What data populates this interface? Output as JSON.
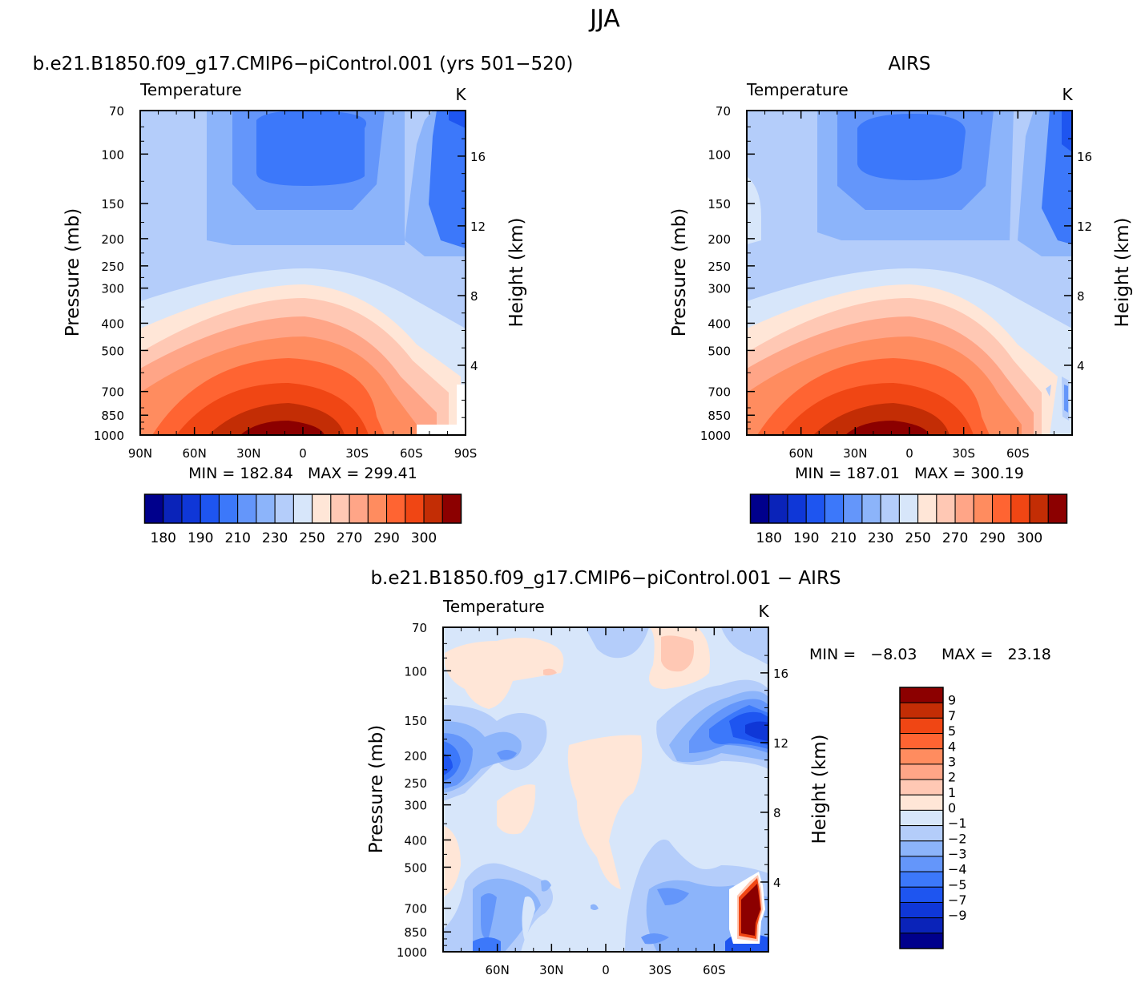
{
  "figure": {
    "title": "JJA"
  },
  "colors": {
    "temperature_palette": [
      "#00008c",
      "#0a23b9",
      "#0f37d7",
      "#1e55f0",
      "#3c78fa",
      "#6496fa",
      "#8cb4fa",
      "#b4cdfa",
      "#d7e6fa",
      "#ffe6d7",
      "#ffc8b4",
      "#ffa587",
      "#ff8c5f",
      "#ff6432",
      "#f04614",
      "#c32d05",
      "#8c0000"
    ],
    "difference_palette": [
      "#00008c",
      "#0a23b9",
      "#0f37d7",
      "#1e55f0",
      "#3c78fa",
      "#6496fa",
      "#8cb4fa",
      "#b4cdfa",
      "#d7e6fa",
      "#ffe6d7",
      "#ffc8b4",
      "#ffa587",
      "#ff8c5f",
      "#ff6432",
      "#f04614",
      "#c32d05",
      "#8c0000"
    ]
  },
  "chart_data": [
    {
      "type": "heatmap",
      "panel_title": "b.e21.B1850.f09_g17.CMIP6−piControl.001 (yrs 501−520)",
      "left_label": "Temperature",
      "units": "K",
      "ylabel": "Pressure (mb)",
      "ylabel_right": "Height (km)",
      "x_ticks": [
        "90N",
        "60N",
        "30N",
        "0",
        "30S",
        "60S",
        "90S"
      ],
      "x_tick_values": [
        90,
        60,
        30,
        0,
        -30,
        -60,
        -90
      ],
      "xlim": [
        90,
        -90
      ],
      "y_ticks": [
        "70",
        "100",
        "150",
        "200",
        "250",
        "300",
        "400",
        "500",
        "700",
        "850",
        "1000"
      ],
      "y_tick_values": [
        70,
        100,
        150,
        200,
        250,
        300,
        400,
        500,
        700,
        850,
        1000
      ],
      "ylim": [
        1000,
        70
      ],
      "y_scale": "log",
      "height_ticks": [
        "16",
        "12",
        "8",
        "4"
      ],
      "height_tick_values": [
        16,
        12,
        8,
        4
      ],
      "stats": "MIN = 182.84   MAX = 299.41",
      "colorbar": {
        "orientation": "horizontal",
        "labels": [
          "180",
          "190",
          "210",
          "230",
          "250",
          "270",
          "290",
          "300"
        ],
        "levels": [
          175,
          180,
          185,
          190,
          200,
          210,
          220,
          230,
          240,
          250,
          260,
          270,
          280,
          290,
          295,
          300
        ]
      }
    },
    {
      "type": "heatmap",
      "panel_title": "AIRS",
      "left_label": "Temperature",
      "units": "K",
      "ylabel": "Pressure (mb)",
      "ylabel_right": "Height (km)",
      "x_ticks": [
        "60N",
        "30N",
        "0",
        "30S",
        "60S"
      ],
      "x_tick_values": [
        60,
        30,
        0,
        -30,
        -60
      ],
      "xlim": [
        90,
        -90
      ],
      "y_ticks": [
        "70",
        "100",
        "150",
        "200",
        "250",
        "300",
        "400",
        "500",
        "700",
        "850",
        "1000"
      ],
      "y_tick_values": [
        70,
        100,
        150,
        200,
        250,
        300,
        400,
        500,
        700,
        850,
        1000
      ],
      "ylim": [
        1000,
        70
      ],
      "y_scale": "log",
      "height_ticks": [
        "16",
        "12",
        "8",
        "4"
      ],
      "height_tick_values": [
        16,
        12,
        8,
        4
      ],
      "stats": "MIN = 187.01   MAX = 300.19",
      "colorbar": {
        "orientation": "horizontal",
        "labels": [
          "180",
          "190",
          "210",
          "230",
          "250",
          "270",
          "290",
          "300"
        ],
        "levels": [
          175,
          180,
          185,
          190,
          200,
          210,
          220,
          230,
          240,
          250,
          260,
          270,
          280,
          290,
          295,
          300
        ]
      }
    },
    {
      "type": "heatmap",
      "panel_title": "b.e21.B1850.f09_g17.CMIP6−piControl.001 − AIRS",
      "left_label": "Temperature",
      "units": "K",
      "ylabel": "Pressure (mb)",
      "ylabel_right": "Height (km)",
      "x_ticks": [
        "60N",
        "30N",
        "0",
        "30S",
        "60S"
      ],
      "x_tick_values": [
        60,
        30,
        0,
        -30,
        -60
      ],
      "xlim": [
        90,
        -90
      ],
      "y_ticks": [
        "70",
        "100",
        "150",
        "200",
        "250",
        "300",
        "400",
        "500",
        "700",
        "850",
        "1000"
      ],
      "y_tick_values": [
        70,
        100,
        150,
        200,
        250,
        300,
        400,
        500,
        700,
        850,
        1000
      ],
      "ylim": [
        1000,
        70
      ],
      "y_scale": "log",
      "height_ticks": [
        "16",
        "12",
        "8",
        "4"
      ],
      "height_tick_values": [
        16,
        12,
        8,
        4
      ],
      "stats_min": "MIN =   −8.03",
      "stats_max": "MAX =   23.18",
      "colorbar": {
        "orientation": "vertical",
        "labels": [
          "9",
          "7",
          "5",
          "4",
          "3",
          "2",
          "1",
          "0",
          "−1",
          "−2",
          "−3",
          "−4",
          "−5",
          "−7",
          "−9"
        ],
        "levels": [
          9,
          7,
          5,
          4,
          3,
          2,
          1,
          0,
          -1,
          -2,
          -3,
          -4,
          -5,
          -7,
          -9
        ]
      }
    }
  ]
}
